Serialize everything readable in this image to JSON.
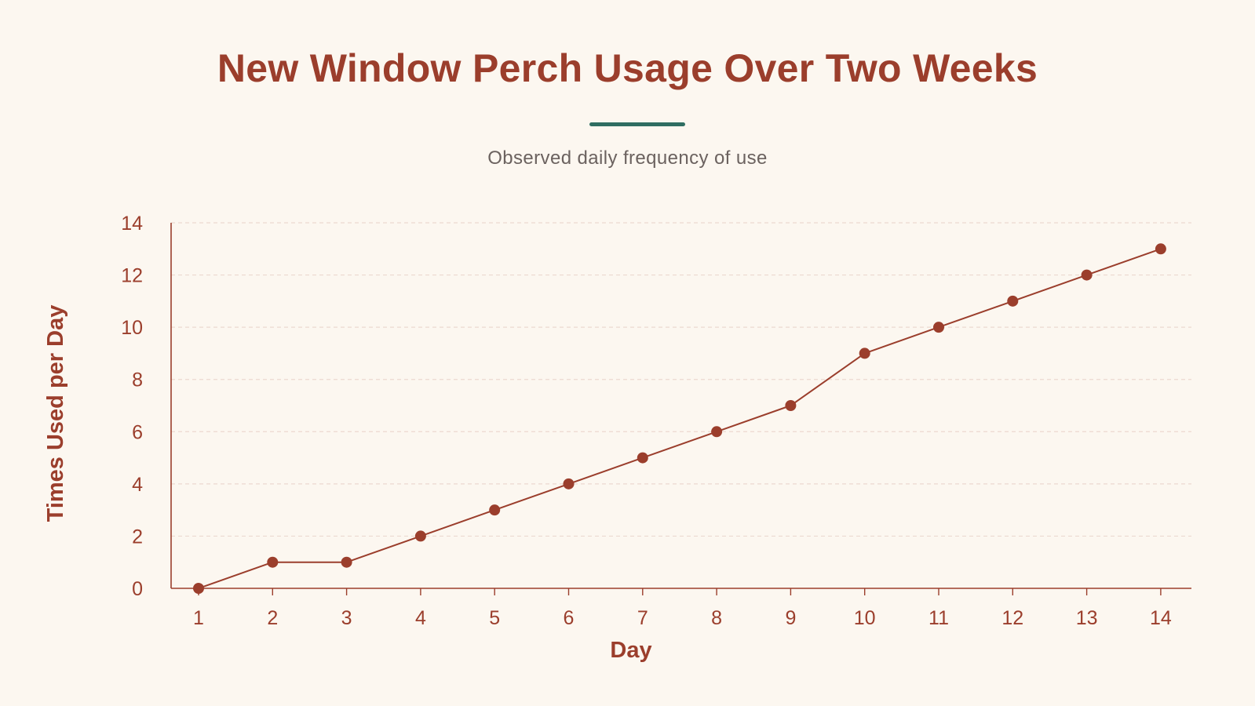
{
  "chart_data": {
    "type": "line",
    "title": "New Window Perch Usage Over Two Weeks",
    "subtitle": "Observed daily frequency of use",
    "xlabel": "Day",
    "ylabel": "Times Used per Day",
    "x": [
      1,
      2,
      3,
      4,
      5,
      6,
      7,
      8,
      9,
      10,
      11,
      12,
      13,
      14
    ],
    "y": [
      0,
      1,
      1,
      2,
      3,
      4,
      5,
      6,
      7,
      9,
      10,
      11,
      12,
      13
    ],
    "ylim": [
      0,
      14
    ],
    "yticks": [
      0,
      2,
      4,
      6,
      8,
      10,
      12,
      14
    ],
    "grid": true,
    "legend": "none",
    "colors": {
      "series": "#9b3e2c",
      "title": "#9b3e2c",
      "accent": "#2f6e62",
      "subtitle": "#6b625f",
      "grid": "#ecd9d0",
      "background": "#fcf7f0"
    }
  }
}
